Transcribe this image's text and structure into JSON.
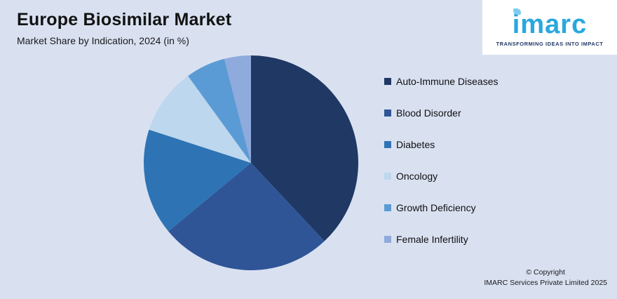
{
  "header": {
    "title": "Europe Biosimilar Market",
    "subtitle": "Market Share by Indication, 2024 (in %)"
  },
  "logo": {
    "brand": "imarc",
    "tagline": "TRANSFORMING IDEAS INTO IMPACT"
  },
  "footer": {
    "line1": "© Copyright",
    "line2": "IMARC Services Private Limited 2025"
  },
  "colors": {
    "background": "#d9e1f1",
    "brand_blue": "#2aa7df",
    "brand_navy": "#1f3864"
  },
  "chart_data": {
    "type": "pie",
    "title": "Europe Biosimilar Market",
    "subtitle": "Market Share by Indication, 2024 (in %)",
    "unit": "%",
    "legend_position": "right",
    "start_angle_deg": 0,
    "direction": "clockwise",
    "segments": [
      {
        "label": "Auto-Immune Diseases",
        "value": 38,
        "color": "#1f3864"
      },
      {
        "label": "Blood Disorder",
        "value": 26,
        "color": "#2f5597"
      },
      {
        "label": "Diabetes",
        "value": 16,
        "color": "#2e74b5"
      },
      {
        "label": "Oncology",
        "value": 10,
        "color": "#bdd7ee"
      },
      {
        "label": "Growth Deficiency",
        "value": 6,
        "color": "#5b9bd5"
      },
      {
        "label": "Female Infertility",
        "value": 4,
        "color": "#8faadc"
      }
    ]
  }
}
